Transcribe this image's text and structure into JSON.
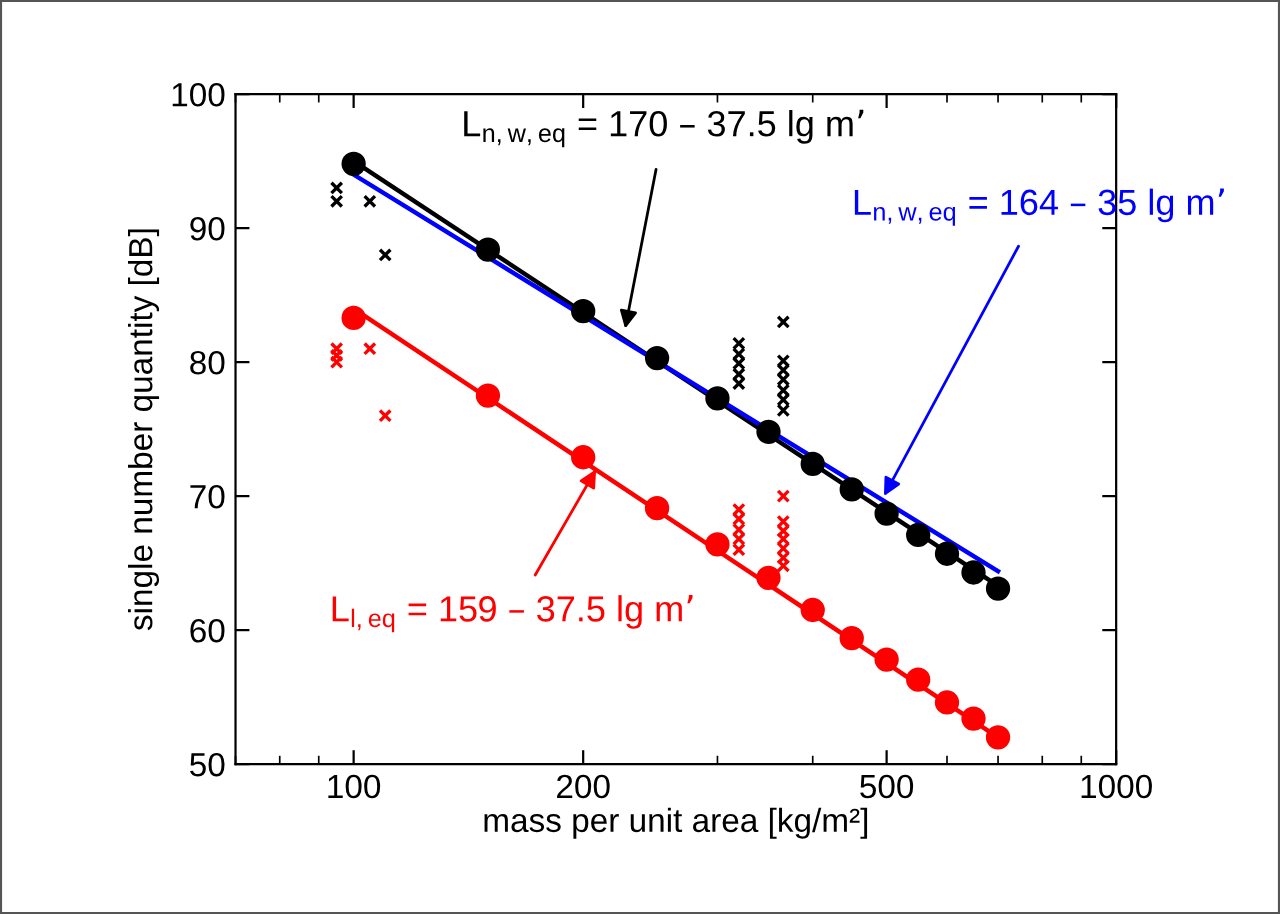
{
  "chart_data": {
    "type": "scatter",
    "xlabel": "mass per unit area [kg/m²]",
    "ylabel": "single number quantity [dB]",
    "log": "x",
    "xlim": [
      70,
      1000
    ],
    "xticks": [
      100,
      200,
      500,
      1000
    ],
    "ylim": [
      50,
      100
    ],
    "yticks": [
      50,
      60,
      70,
      80,
      90,
      100
    ],
    "grid": false,
    "legend": false,
    "series": [
      {
        "type": "line",
        "color": "#000000",
        "marker": "none",
        "x": [
          100,
          700
        ],
        "values": [
          95,
          63.3
        ]
      },
      {
        "type": "line",
        "color": "#0000ff",
        "marker": "none",
        "x": [
          100,
          700
        ],
        "values": [
          94,
          64.4
        ]
      },
      {
        "type": "line",
        "color": "#ff0000",
        "marker": "none",
        "x": [
          100,
          700
        ],
        "values": [
          84,
          52
        ]
      },
      {
        "color": "#000000",
        "marker": "circle",
        "x": [
          100,
          150,
          200,
          250,
          300,
          350,
          400,
          450,
          500,
          550,
          600,
          650,
          700
        ],
        "values": [
          94.8,
          88.4,
          83.8,
          80.3,
          77.3,
          74.8,
          72.4,
          70.5,
          68.7,
          67.1,
          65.7,
          64.3,
          63.1
        ]
      },
      {
        "color": "#ff0000",
        "marker": "circle",
        "x": [
          100,
          150,
          200,
          250,
          300,
          350,
          400,
          450,
          500,
          550,
          600,
          650,
          700
        ],
        "values": [
          83.3,
          77.5,
          72.9,
          69.1,
          66.4,
          63.9,
          61.5,
          59.4,
          57.8,
          56.3,
          54.6,
          53.4,
          52
        ]
      },
      {
        "color": "#000000",
        "marker": "cross",
        "x": [
          95,
          95,
          105,
          110,
          320,
          320,
          320,
          320,
          320,
          366,
          366,
          366,
          366,
          366,
          366,
          366
        ],
        "values": [
          93,
          92,
          92,
          88,
          81.4,
          80.6,
          79.9,
          79.1,
          78.4,
          83,
          80.1,
          79.4,
          78.7,
          77.9,
          77.2,
          76.4
        ]
      },
      {
        "color": "#ff0000",
        "marker": "cross",
        "x": [
          95,
          95,
          95,
          105,
          110,
          320,
          320,
          320,
          320,
          320,
          366,
          366,
          366,
          366,
          366,
          366,
          366
        ],
        "values": [
          81,
          80.5,
          80,
          81,
          76,
          69,
          68.3,
          67.5,
          66.8,
          66,
          70,
          68.1,
          67.4,
          66.8,
          66.1,
          65.4,
          64.8
        ]
      }
    ],
    "annotations": [
      {
        "text": "L$_{n,w,eq}$ = 170 – 37.5 lg m’",
        "x": 227,
        "y": 82.5
      },
      {
        "text": "L$_{n,w,eq}$ = 164 – 35 lg m’",
        "x": 496,
        "y": 70
      },
      {
        "text": "L$_{l,eq}$ = 159 – 37.5 lg m’",
        "x": 208,
        "y": 72
      }
    ]
  }
}
